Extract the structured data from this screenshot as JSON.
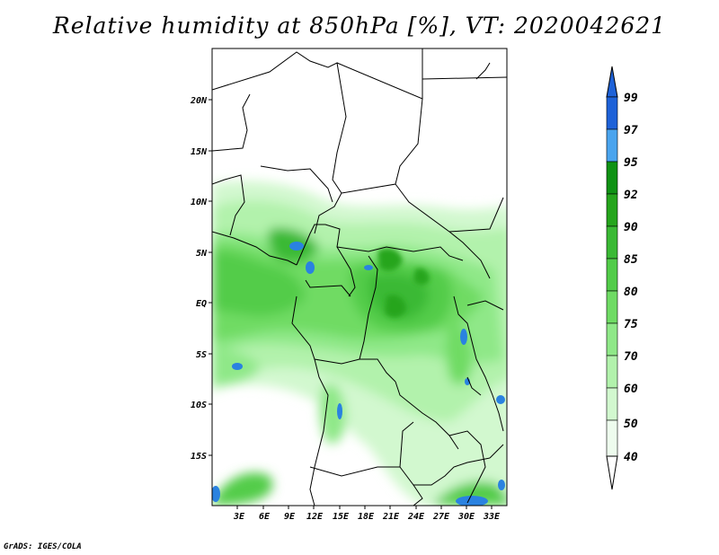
{
  "title": "Relative humidity at 850hPa [%], VT: 2020042621",
  "credit": "GrADS: IGES/COLA",
  "map": {
    "lon_range": [
      0,
      34
    ],
    "lat_range": [
      -20,
      25
    ],
    "lon_ticks": [
      "3E",
      "6E",
      "9E",
      "12E",
      "15E",
      "18E",
      "21E",
      "24E",
      "27E",
      "30E",
      "33E"
    ],
    "lat_ticks": [
      "20N",
      "15N",
      "10N",
      "5N",
      "EQ",
      "5S",
      "10S",
      "15S"
    ]
  },
  "colorbar": {
    "levels": [
      "99",
      "97",
      "95",
      "92",
      "90",
      "85",
      "80",
      "75",
      "70",
      "60",
      "50",
      "40"
    ],
    "colors": [
      "#1e62d8",
      "#2a82e0",
      "#4aa4ee",
      "#0f9214",
      "#25a51c",
      "#3ab934",
      "#52cc49",
      "#6fdb64",
      "#8fe888",
      "#b2f2ac",
      "#d2f8cf",
      "#eefcee"
    ]
  }
}
